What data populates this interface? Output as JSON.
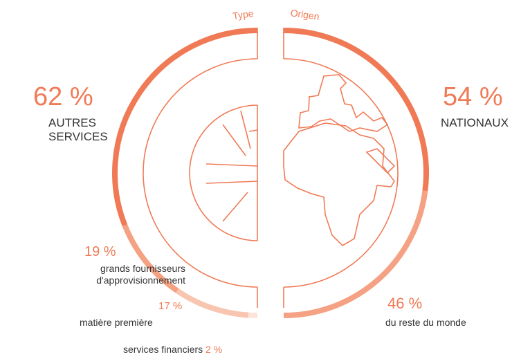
{
  "chart_data": [
    {
      "type": "half-donut",
      "title": "Type",
      "categories": [
        "AUTRES SERVICES",
        "grands fournisseurs d'approvisionnement",
        "matière première",
        "services financiers"
      ],
      "values": [
        62,
        19,
        17,
        2
      ],
      "value_labels": [
        "62 %",
        "19 %",
        "17 %",
        "2 %"
      ],
      "colors": [
        "#f07a55",
        "#f4a283",
        "#f8c6b0",
        "#fce4da"
      ]
    },
    {
      "type": "half-donut",
      "title": "Origen",
      "categories": [
        "NATIONAUX",
        "du reste du monde"
      ],
      "values": [
        54,
        46
      ],
      "value_labels": [
        "54 %",
        "46 %"
      ],
      "colors": [
        "#f07a55",
        "#f4a283"
      ]
    }
  ]
}
